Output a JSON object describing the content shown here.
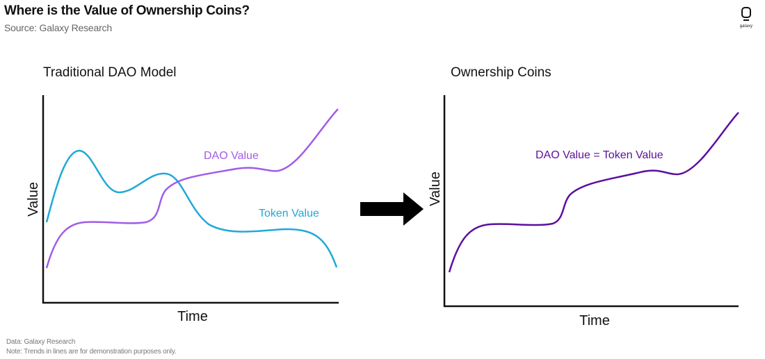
{
  "header": {
    "title": "Where is the Value of Ownership Coins?",
    "subtitle": "Source: Galaxy Research"
  },
  "logo": {
    "text": "galaxy",
    "icon": "galaxy-logo-icon"
  },
  "footer": {
    "data_note": "Data: Galaxy Research",
    "disclaimer": "Note: Trends in lines are for demonstration purposes only."
  },
  "colors": {
    "dao_value": "#a05ce6",
    "token_value": "#20a8d8",
    "combined_value": "#5b0f9e",
    "arrow": "#000000"
  },
  "left_panel": {
    "title": "Traditional DAO Model",
    "x_axis_label": "Time",
    "y_axis_label": "Value",
    "dao_label": "DAO Value",
    "token_label": "Token Value"
  },
  "arrow": {
    "icon": "right-arrow-icon"
  },
  "right_panel": {
    "title": "Ownership Coins",
    "x_axis_label": "Time",
    "y_axis_label": "Value",
    "combined_label": "DAO Value = Token Value"
  }
}
